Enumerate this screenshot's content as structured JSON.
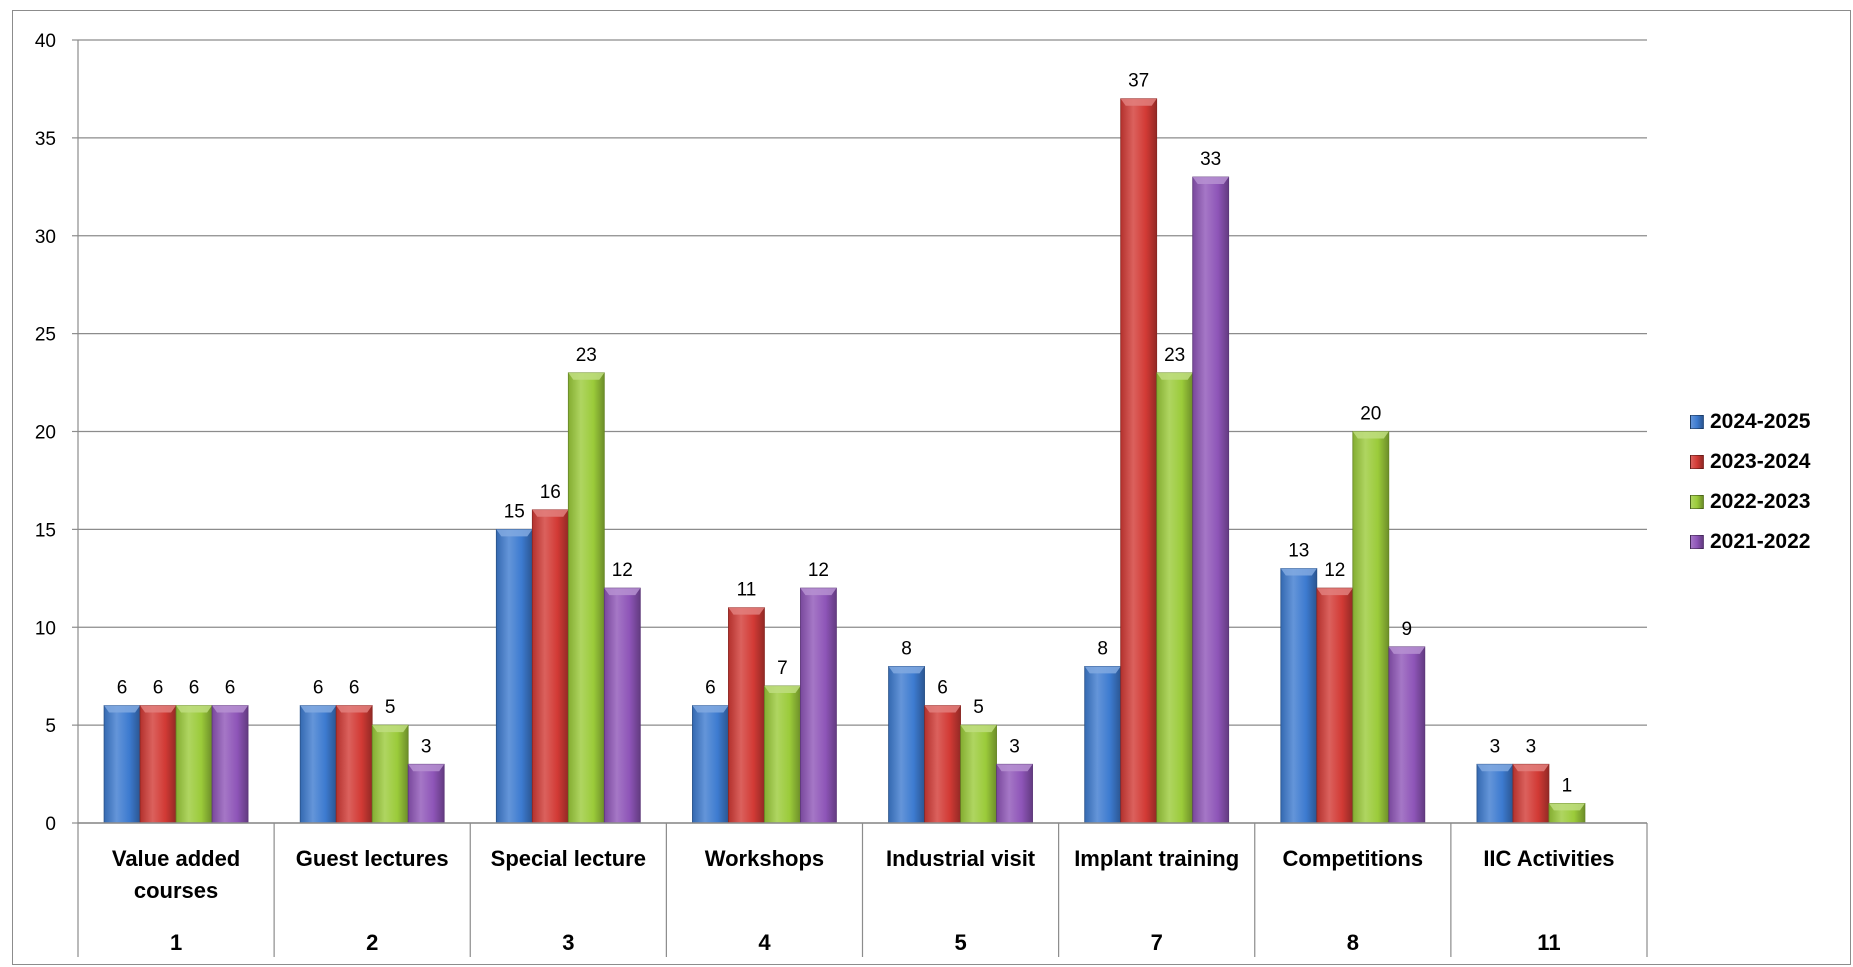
{
  "chart_data": {
    "type": "bar",
    "title": "",
    "xlabel": "",
    "ylabel": "",
    "ylim": [
      0,
      40
    ],
    "yticks": [
      0,
      5,
      10,
      15,
      20,
      25,
      30,
      35,
      40
    ],
    "grid": true,
    "legend_position": "right",
    "categories": [
      "Value added courses",
      "Guest lectures",
      "Special lecture",
      "Workshops",
      "Industrial visit",
      "Implant training",
      "Competitions",
      "IIC Activities"
    ],
    "category_numbers": [
      "1",
      "2",
      "3",
      "4",
      "5",
      "7",
      "8",
      "11"
    ],
    "series": [
      {
        "name": "2024-2025",
        "color": "#3d7bd0",
        "values": [
          6,
          6,
          15,
          6,
          8,
          8,
          13,
          3
        ]
      },
      {
        "name": "2023-2024",
        "color": "#d23a35",
        "values": [
          6,
          6,
          16,
          11,
          6,
          37,
          12,
          3
        ]
      },
      {
        "name": "2022-2023",
        "color": "#9bcb3a",
        "values": [
          6,
          5,
          23,
          7,
          5,
          23,
          20,
          1
        ]
      },
      {
        "name": "2021-2022",
        "color": "#8e55b8",
        "values": [
          6,
          3,
          12,
          12,
          3,
          33,
          9,
          null
        ]
      }
    ]
  }
}
